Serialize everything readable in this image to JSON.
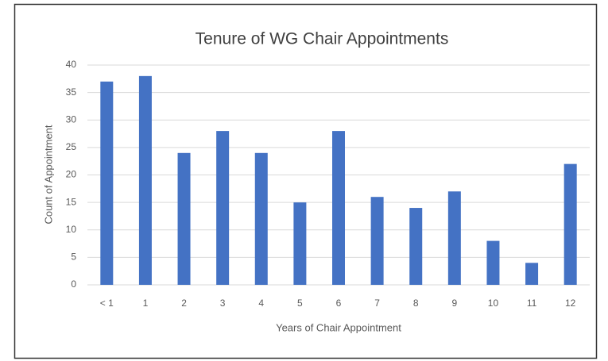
{
  "chart_data": {
    "type": "bar",
    "title": "Tenure of WG Chair Appointments",
    "x_label": "Years of Chair Appointment",
    "y_label": "Count of Appointment",
    "categories": [
      "< 1",
      "1",
      "2",
      "3",
      "4",
      "5",
      "6",
      "7",
      "8",
      "9",
      "10",
      "11",
      "12"
    ],
    "values": [
      37,
      38,
      24,
      28,
      24,
      15,
      28,
      16,
      14,
      17,
      8,
      4,
      22
    ],
    "color": "#4472c4",
    "ylim": [
      0,
      40
    ],
    "yticks": [
      0,
      5,
      10,
      15,
      20,
      25,
      30,
      35,
      40
    ],
    "grid": true
  }
}
